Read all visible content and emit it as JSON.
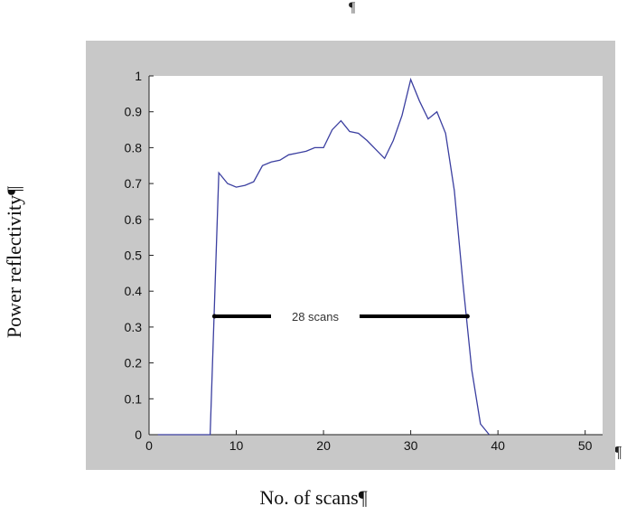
{
  "page_marks": {
    "top": "¶",
    "right": "¶"
  },
  "chart_data": {
    "type": "line",
    "title": "",
    "xlabel": "No. of scans¶",
    "ylabel": "Power reflectivity¶",
    "xlim": [
      0,
      52
    ],
    "ylim": [
      0,
      1
    ],
    "xticks": [
      0,
      10,
      20,
      30,
      40,
      50
    ],
    "yticks": [
      0,
      0.1,
      0.2,
      0.3,
      0.4,
      0.5,
      0.6,
      0.7,
      0.8,
      0.9,
      1
    ],
    "xtick_labels": [
      "0",
      "10",
      "20",
      "30",
      "40",
      "50"
    ],
    "ytick_labels": [
      "0",
      "0.1",
      "0.2",
      "0.3",
      "0.4",
      "0.5",
      "0.6",
      "0.7",
      "0.8",
      "0.9",
      "1"
    ],
    "grid": false,
    "series": [
      {
        "color": "#3b3fa0",
        "x": [
          1,
          7,
          8,
          9,
          10,
          11,
          12,
          13,
          14,
          15,
          16,
          17,
          18,
          19,
          20,
          21,
          22,
          23,
          24,
          25,
          26,
          27,
          28,
          29,
          30,
          31,
          32,
          33,
          34,
          35,
          36,
          37,
          38,
          39
        ],
        "y": [
          0,
          0,
          0.73,
          0.7,
          0.69,
          0.695,
          0.705,
          0.75,
          0.76,
          0.765,
          0.78,
          0.785,
          0.79,
          0.8,
          0.8,
          0.85,
          0.875,
          0.845,
          0.84,
          0.82,
          0.795,
          0.77,
          0.82,
          0.89,
          0.99,
          0.93,
          0.88,
          0.9,
          0.84,
          0.68,
          0.42,
          0.18,
          0.03,
          0.0
        ]
      }
    ],
    "annotation": {
      "text": "28 scans",
      "x_start": 7.5,
      "x_end": 36.5,
      "y": 0.33,
      "color": "#000000"
    }
  }
}
